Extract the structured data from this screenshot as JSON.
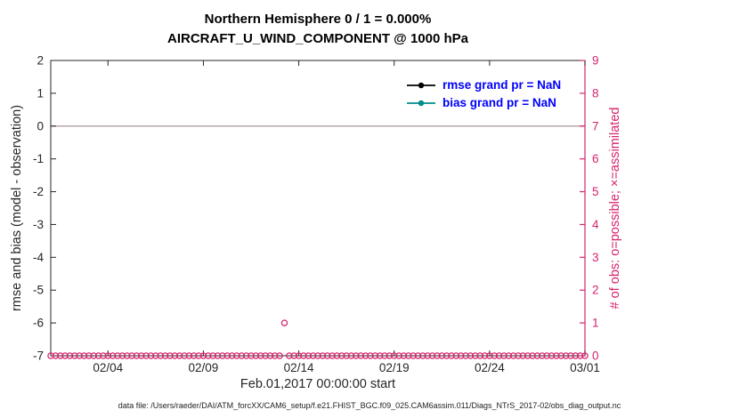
{
  "caption": "data file: /Users/raeder/DAI/ATM_forcXX/CAM6_setup/f.e21.FHIST_BGC.f09_025.CAM6assim.011/Diags_NTrS_2017-02/obs_diag_output.nc",
  "chart_data": {
    "type": "scatter",
    "title": "Northern Hemisphere 0 / 1 = 0.000%",
    "subtitle": "AIRCRAFT_U_WIND_COMPONENT @ 1000 hPa",
    "xlabel": "Feb.01,2017 00:00:00 start",
    "ylabel_left": "rmse and bias (model - observation)",
    "ylabel_right": "# of obs: o=possible; ×=assimilated",
    "grid": false,
    "x_range": [
      1,
      29
    ],
    "x_ticks": [
      {
        "value": 4,
        "label": "02/04"
      },
      {
        "value": 9,
        "label": "02/09"
      },
      {
        "value": 14,
        "label": "02/14"
      },
      {
        "value": 19,
        "label": "02/19"
      },
      {
        "value": 24,
        "label": "02/24"
      },
      {
        "value": 29,
        "label": "03/01"
      }
    ],
    "ylim_left": [
      -7,
      2
    ],
    "yticks_left": [
      2,
      1,
      0,
      -1,
      -2,
      -3,
      -4,
      -5,
      -6,
      -7
    ],
    "ylim_right": [
      0,
      9
    ],
    "yticks_right": [
      0,
      1,
      2,
      3,
      4,
      5,
      6,
      7,
      8,
      9
    ],
    "zero_line": {
      "y": 0,
      "color": "#b9a6a6"
    },
    "colors": {
      "axis": "#262626",
      "right_axis": "#d6246e"
    },
    "legend_text_color": "#0000ff",
    "legend": [
      {
        "name": "rmse",
        "label": "rmse grand pr = NaN",
        "color": "#000000"
      },
      {
        "name": "bias",
        "label": "bias grand pr = NaN",
        "color": "#008b8b"
      }
    ],
    "series": [
      {
        "name": "rmse",
        "axis": "left",
        "color": "#000000",
        "values": "NaN"
      },
      {
        "name": "bias",
        "axis": "left",
        "color": "#008b8b",
        "values": "NaN"
      },
      {
        "name": "num-obs-possible",
        "axis": "right",
        "marker": "o",
        "color": "#d6246e",
        "x_start": 1,
        "x_end": 29,
        "x_step": 0.25,
        "default_y": 0,
        "exceptions": [
          {
            "x": 13.25,
            "y": 1
          }
        ]
      }
    ]
  }
}
